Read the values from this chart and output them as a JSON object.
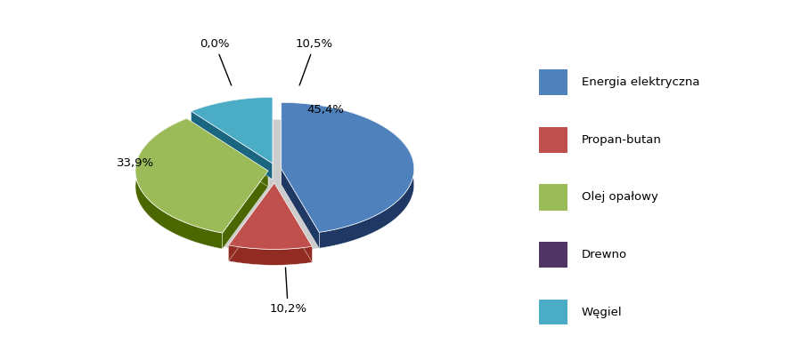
{
  "labels": [
    "Energia elektryczna",
    "Propan-butan",
    "Olej opałowy",
    "Drewno",
    "Węgiel"
  ],
  "values": [
    45.4,
    10.2,
    33.9,
    0.0,
    10.5
  ],
  "colors_top": [
    "#4F81BD",
    "#C0504D",
    "#9BBB59",
    "#4F3466",
    "#4BACC6"
  ],
  "colors_side": [
    "#1F3864",
    "#922B21",
    "#4B6800",
    "#2C1654",
    "#1A6680"
  ],
  "explode": [
    0.05,
    0.1,
    0.05,
    0.05,
    0.05
  ],
  "startangle": 90,
  "legend_labels": [
    "Energia elektryczna",
    "Propan-butan",
    "Olej opałowy",
    "Drewno",
    "Węgiel"
  ],
  "pct_labels": [
    "45,4%",
    "10,2%",
    "33,9%",
    "0,0%",
    "10,5%"
  ],
  "figsize": [
    9.07,
    4.05
  ],
  "dpi": 100
}
